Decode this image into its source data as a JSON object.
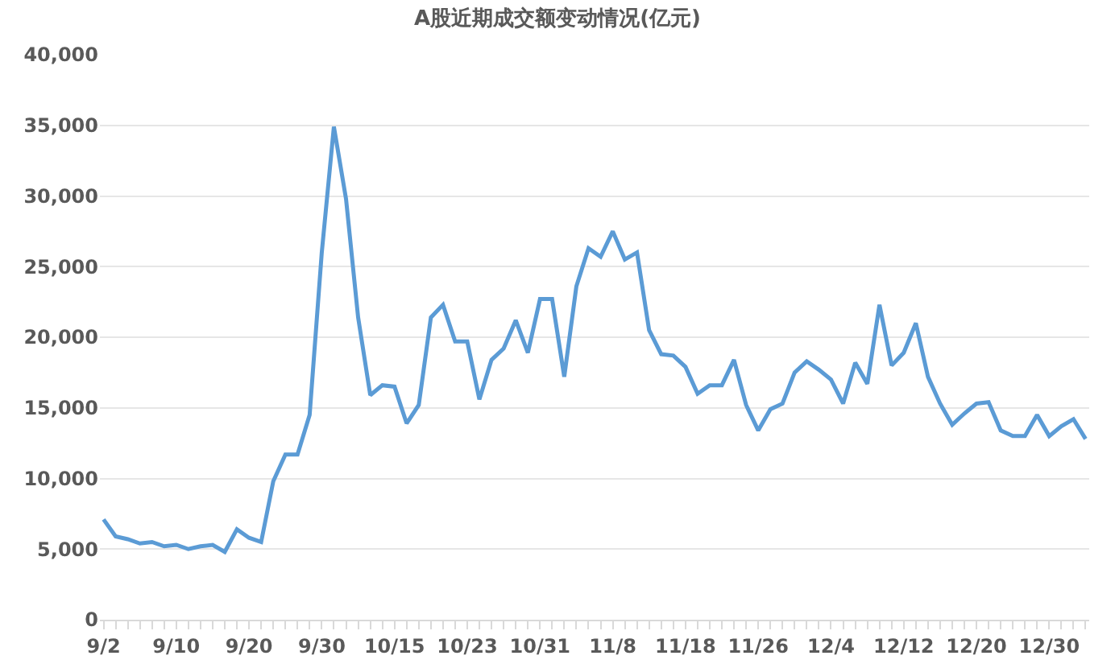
{
  "chart_data": {
    "type": "line",
    "title": "A股近期成交额变动情况(亿元)",
    "categories": [
      "9/2",
      null,
      null,
      null,
      null,
      null,
      "9/10",
      null,
      null,
      null,
      null,
      null,
      "9/20",
      null,
      null,
      null,
      null,
      null,
      "9/30",
      null,
      null,
      null,
      null,
      null,
      "10/15",
      null,
      null,
      null,
      null,
      null,
      "10/23",
      null,
      null,
      null,
      null,
      null,
      "10/31",
      null,
      null,
      null,
      null,
      null,
      "11/8",
      null,
      null,
      null,
      null,
      null,
      "11/18",
      null,
      null,
      null,
      null,
      null,
      "11/26",
      null,
      null,
      null,
      null,
      null,
      "12/4",
      null,
      null,
      null,
      null,
      null,
      "12/12",
      null,
      null,
      null,
      null,
      null,
      "12/20",
      null,
      null,
      null,
      null,
      null,
      "12/30",
      null,
      null,
      null
    ],
    "series": [
      {
        "color": "#5b9bd5",
        "values": [
          7100,
          5900,
          5700,
          5400,
          5500,
          5200,
          5300,
          5000,
          5200,
          5300,
          4800,
          6400,
          5800,
          5500,
          9800,
          11700,
          11700,
          14500,
          26000,
          34900,
          29800,
          21400,
          15900,
          16600,
          16500,
          13900,
          15200,
          21400,
          22300,
          19700,
          19700,
          15600,
          18400,
          19200,
          21200,
          18900,
          22700,
          22700,
          17200,
          23600,
          26300,
          25700,
          27500,
          25500,
          26000,
          20500,
          18800,
          18700,
          17900,
          16000,
          16600,
          16600,
          18400,
          15200,
          13400,
          14900,
          15300,
          17500,
          18300,
          17700,
          17000,
          15300,
          18200,
          16700,
          22300,
          18000,
          18900,
          21000,
          17200,
          15300,
          13800,
          14600,
          15300,
          15400,
          13400,
          13000,
          13000,
          14500,
          13000,
          13700,
          14200,
          12800
        ]
      }
    ],
    "ylim": [
      0,
      40000
    ],
    "yticks": [
      0,
      {
        "value": 5000,
        "label": "5,000"
      },
      {
        "value": 10000,
        "label": "10,000"
      },
      {
        "value": 15000,
        "label": "15,000"
      },
      {
        "value": 20000,
        "label": "20,000"
      },
      {
        "value": 25000,
        "label": "25,000"
      },
      {
        "value": 30000,
        "label": "30,000"
      },
      {
        "value": 35000,
        "label": "35,000"
      },
      {
        "value": 40000,
        "label": "40,000"
      }
    ],
    "grid": "y",
    "legend": false,
    "marker": "none",
    "line_style": "solid"
  }
}
